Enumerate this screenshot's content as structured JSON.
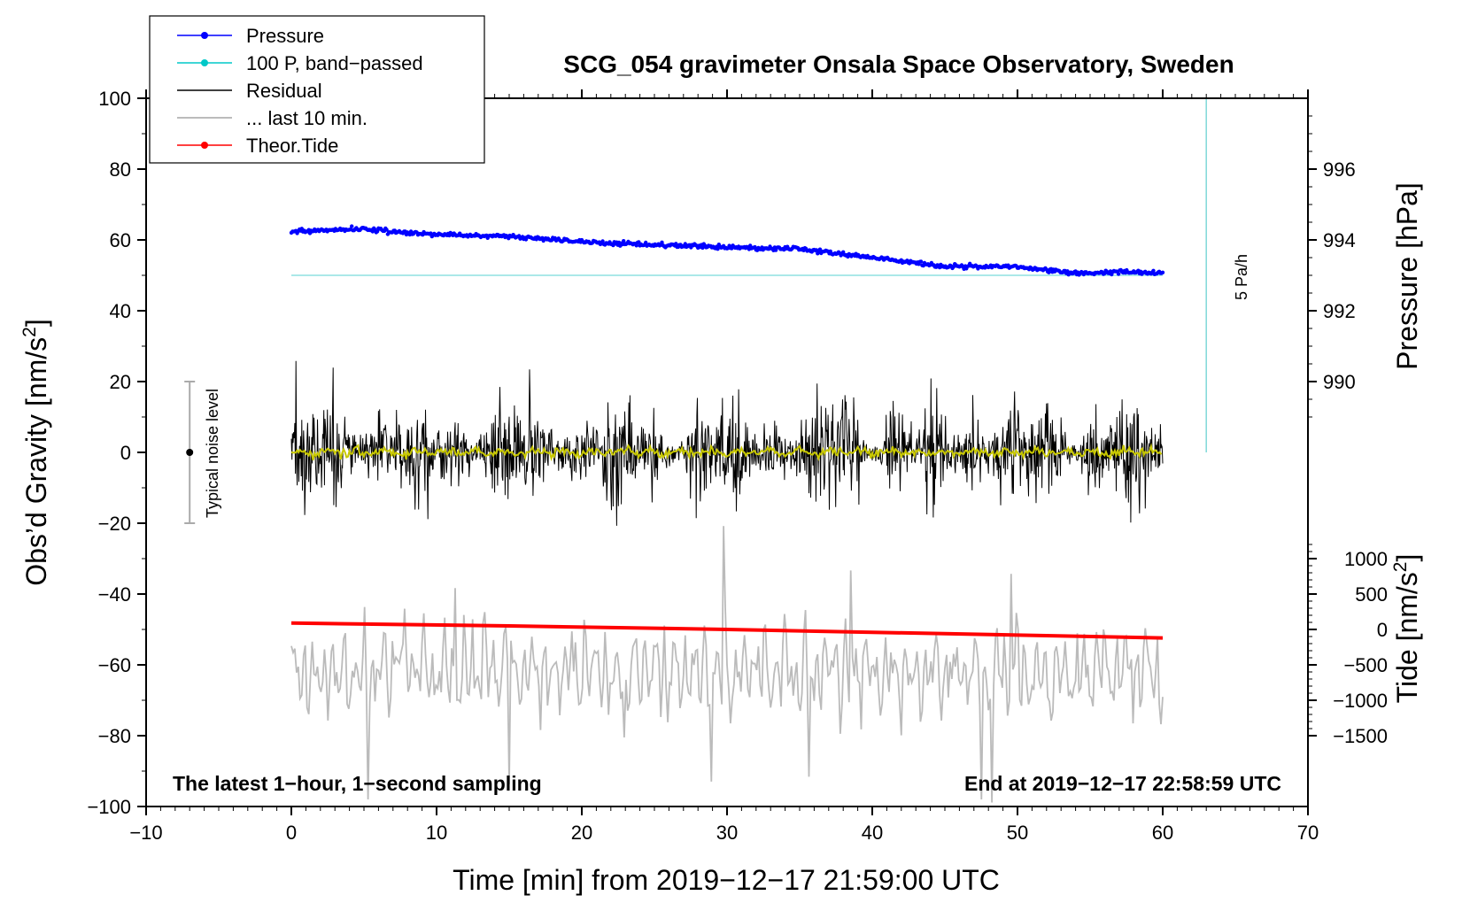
{
  "chart_data": {
    "type": "line",
    "title": "SCG_054 gravimeter Onsala Space Observatory, Sweden",
    "xlabel": "Time [min] from 2019−12−17 21:59:00 UTC",
    "ylabel_left": "Obs’d Gravity [nm/s",
    "ylabel_left_sup": "2",
    "ylabel_left_end": "]",
    "ylabel_right_pressure": "Pressure [hPa]",
    "ylabel_right_tide": "Tide [nm/s",
    "ylabel_right_tide_sup": "2",
    "ylabel_right_tide_end": "]",
    "xlim": [
      -10,
      70
    ],
    "ylim": [
      -100,
      100
    ],
    "x_ticks": [
      {
        "v": -10,
        "label": "−10"
      },
      {
        "v": 0,
        "label": "0"
      },
      {
        "v": 10,
        "label": "10"
      },
      {
        "v": 20,
        "label": "20"
      },
      {
        "v": 30,
        "label": "30"
      },
      {
        "v": 40,
        "label": "40"
      },
      {
        "v": 50,
        "label": "50"
      },
      {
        "v": 60,
        "label": "60"
      },
      {
        "v": 70,
        "label": "70"
      }
    ],
    "y_ticks": [
      {
        "v": 100,
        "label": "100"
      },
      {
        "v": 80,
        "label": "80"
      },
      {
        "v": 60,
        "label": "60"
      },
      {
        "v": 40,
        "label": "40"
      },
      {
        "v": 20,
        "label": "20"
      },
      {
        "v": 0,
        "label": "0"
      },
      {
        "v": -20,
        "label": "−20"
      },
      {
        "v": -40,
        "label": "−40"
      },
      {
        "v": -60,
        "label": "−60"
      },
      {
        "v": -80,
        "label": "−80"
      },
      {
        "v": -100,
        "label": "−100"
      }
    ],
    "pressure_axis": {
      "mapping": {
        "p_ref": 994,
        "y_ref": 60,
        "units_per_hPa": 10
      },
      "ticks": [
        {
          "v": 996,
          "label": "996"
        },
        {
          "v": 994,
          "label": "994"
        },
        {
          "v": 992,
          "label": "992"
        },
        {
          "v": 990,
          "label": "990"
        }
      ]
    },
    "tide_axis": {
      "mapping": {
        "t_ref": 0,
        "y_ref": -50,
        "units_per_nms2": 0.02
      },
      "ticks": [
        {
          "v": 1000,
          "label": "1000"
        },
        {
          "v": 500,
          "label": "500"
        },
        {
          "v": 0,
          "label": "0"
        },
        {
          "v": -500,
          "label": "−500"
        },
        {
          "v": -1000,
          "label": "−1000"
        },
        {
          "v": -1500,
          "label": "−1500"
        }
      ]
    },
    "series": [
      {
        "name": "Pressure",
        "color": "#0000ff",
        "units": "hPa",
        "x": [
          0,
          5,
          10,
          15,
          20,
          25,
          30,
          35,
          40,
          45,
          50,
          54,
          57,
          60
        ],
        "values": [
          994.25,
          994.3,
          994.15,
          994.1,
          993.95,
          993.85,
          993.8,
          993.75,
          993.5,
          993.25,
          993.25,
          993.05,
          993.1,
          993.05
        ]
      },
      {
        "name": "100 P, band−passed",
        "color": "#00c8c8",
        "units": "nm/s2",
        "x": [
          0,
          60
        ],
        "values": [
          50,
          50
        ]
      },
      {
        "name": "Residual",
        "color": "#000000",
        "units": "nm/s2",
        "x_range": [
          0,
          60
        ],
        "amplitude_typical": 10,
        "amplitude_peak": 27,
        "offset": 0
      },
      {
        "name": "Residual smoothed",
        "color": "#c8c800",
        "units": "nm/s2",
        "x_range": [
          0,
          60
        ],
        "level": 0
      },
      {
        "name": "... last 10 min.",
        "color": "#bbbbbb",
        "units": "nm/s2",
        "x_range": [
          0,
          60
        ],
        "center": -62,
        "amplitude_typical": 12,
        "amplitude_peak": 26
      },
      {
        "name": "Theor.Tide",
        "color": "#ff0000",
        "units": "nm/s2",
        "x": [
          0,
          15,
          30,
          45,
          60
        ],
        "values": [
          90,
          50,
          0,
          -60,
          -120
        ]
      }
    ],
    "rate_scale": {
      "label": "5 Pa/h",
      "x": 63,
      "y_top": 100,
      "y_bottom": 0
    },
    "noise_bar": {
      "label": "Typical noise level",
      "x": -7,
      "y_top": 20,
      "y_bottom": -20
    }
  },
  "legend": [
    {
      "label": "Pressure",
      "color": "#0000ff",
      "style": "dot-line"
    },
    {
      "label": "100 P, band−passed",
      "color": "#00c8c8",
      "style": "dot-line"
    },
    {
      "label": "Residual",
      "color": "#000000",
      "style": "line"
    },
    {
      "label": "... last 10 min.",
      "color": "#bbbbbb",
      "style": "line"
    },
    {
      "label": "Theor.Tide",
      "color": "#ff0000",
      "style": "dot-line"
    }
  ],
  "notes": {
    "bottom_left": "The latest 1−hour, 1−second sampling",
    "bottom_right": "End at 2019−12−17 22:58:59 UTC"
  }
}
